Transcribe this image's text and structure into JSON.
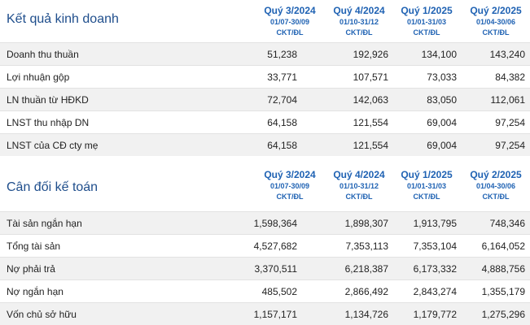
{
  "income": {
    "title": "Kết quả kinh doanh",
    "columns": [
      {
        "quarter": "Quý 3/2024",
        "range": "01/07-30/09",
        "unit": "CKT/ĐL"
      },
      {
        "quarter": "Quý 4/2024",
        "range": "01/10-31/12",
        "unit": "CKT/ĐL"
      },
      {
        "quarter": "Quý 1/2025",
        "range": "01/01-31/03",
        "unit": "CKT/ĐL"
      },
      {
        "quarter": "Quý 2/2025",
        "range": "01/04-30/06",
        "unit": "CKT/ĐL"
      }
    ],
    "rows": [
      {
        "label": "Doanh thu thuần",
        "values": [
          "51,238",
          "192,926",
          "134,100",
          "143,240"
        ]
      },
      {
        "label": "Lợi nhuận gộp",
        "values": [
          "33,771",
          "107,571",
          "73,033",
          "84,382"
        ]
      },
      {
        "label": "LN thuần từ HĐKD",
        "values": [
          "72,704",
          "142,063",
          "83,050",
          "112,061"
        ]
      },
      {
        "label": "LNST thu nhập DN",
        "values": [
          "64,158",
          "121,554",
          "69,004",
          "97,254"
        ]
      },
      {
        "label": "LNST của CĐ cty mẹ",
        "values": [
          "64,158",
          "121,554",
          "69,004",
          "97,254"
        ]
      }
    ]
  },
  "balance": {
    "title": "Cân đối kế toán",
    "columns": [
      {
        "quarter": "Quý 3/2024",
        "range": "01/07-30/09",
        "unit": "CKT/ĐL"
      },
      {
        "quarter": "Quý 4/2024",
        "range": "01/10-31/12",
        "unit": "CKT/ĐL"
      },
      {
        "quarter": "Quý 1/2025",
        "range": "01/01-31/03",
        "unit": "CKT/ĐL"
      },
      {
        "quarter": "Quý 2/2025",
        "range": "01/04-30/06",
        "unit": "CKT/ĐL"
      }
    ],
    "rows": [
      {
        "label": "Tài sản ngắn hạn",
        "values": [
          "1,598,364",
          "1,898,307",
          "1,913,795",
          "748,346"
        ]
      },
      {
        "label": "Tổng tài sản",
        "values": [
          "4,527,682",
          "7,353,113",
          "7,353,104",
          "6,164,052"
        ]
      },
      {
        "label": "Nợ phải trả",
        "values": [
          "3,370,511",
          "6,218,387",
          "6,173,332",
          "4,888,756"
        ]
      },
      {
        "label": "Nợ ngắn hạn",
        "values": [
          "485,502",
          "2,866,492",
          "2,843,274",
          "1,355,179"
        ]
      },
      {
        "label": "Vốn chủ sở hữu",
        "values": [
          "1,157,171",
          "1,134,726",
          "1,179,772",
          "1,275,296"
        ]
      }
    ]
  },
  "colors": {
    "title": "#1f4e8c",
    "header": "#1f62b3",
    "row_alt": "#f1f1f1"
  }
}
